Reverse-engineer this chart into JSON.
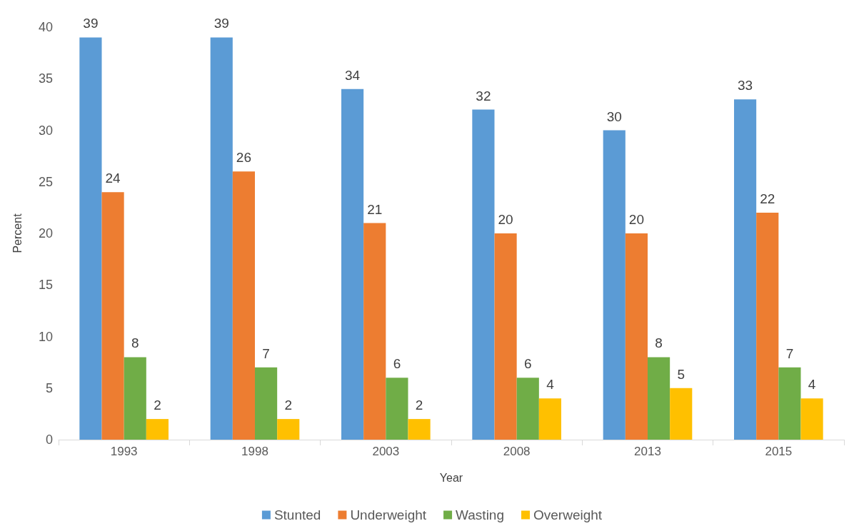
{
  "chart_data": {
    "type": "bar",
    "xlabel": "Year",
    "ylabel": "Percent",
    "categories": [
      "1993",
      "1998",
      "2003",
      "2008",
      "2013",
      "2015"
    ],
    "series": [
      {
        "name": "Stunted",
        "color": "#5b9bd5",
        "values": [
          39,
          39,
          34,
          32,
          30,
          33
        ]
      },
      {
        "name": "Underweight",
        "color": "#ed7d31",
        "values": [
          24,
          26,
          21,
          20,
          20,
          22
        ]
      },
      {
        "name": "Wasting",
        "color": "#70ad47",
        "values": [
          8,
          7,
          6,
          6,
          8,
          7
        ]
      },
      {
        "name": "Overweight",
        "color": "#ffc000",
        "values": [
          2,
          2,
          2,
          4,
          5,
          4
        ]
      }
    ],
    "ylim": [
      0,
      40
    ],
    "yticks": [
      0,
      5,
      10,
      15,
      20,
      25,
      30,
      35,
      40
    ],
    "grid": false,
    "legend": "bottom",
    "data_labels": true
  }
}
